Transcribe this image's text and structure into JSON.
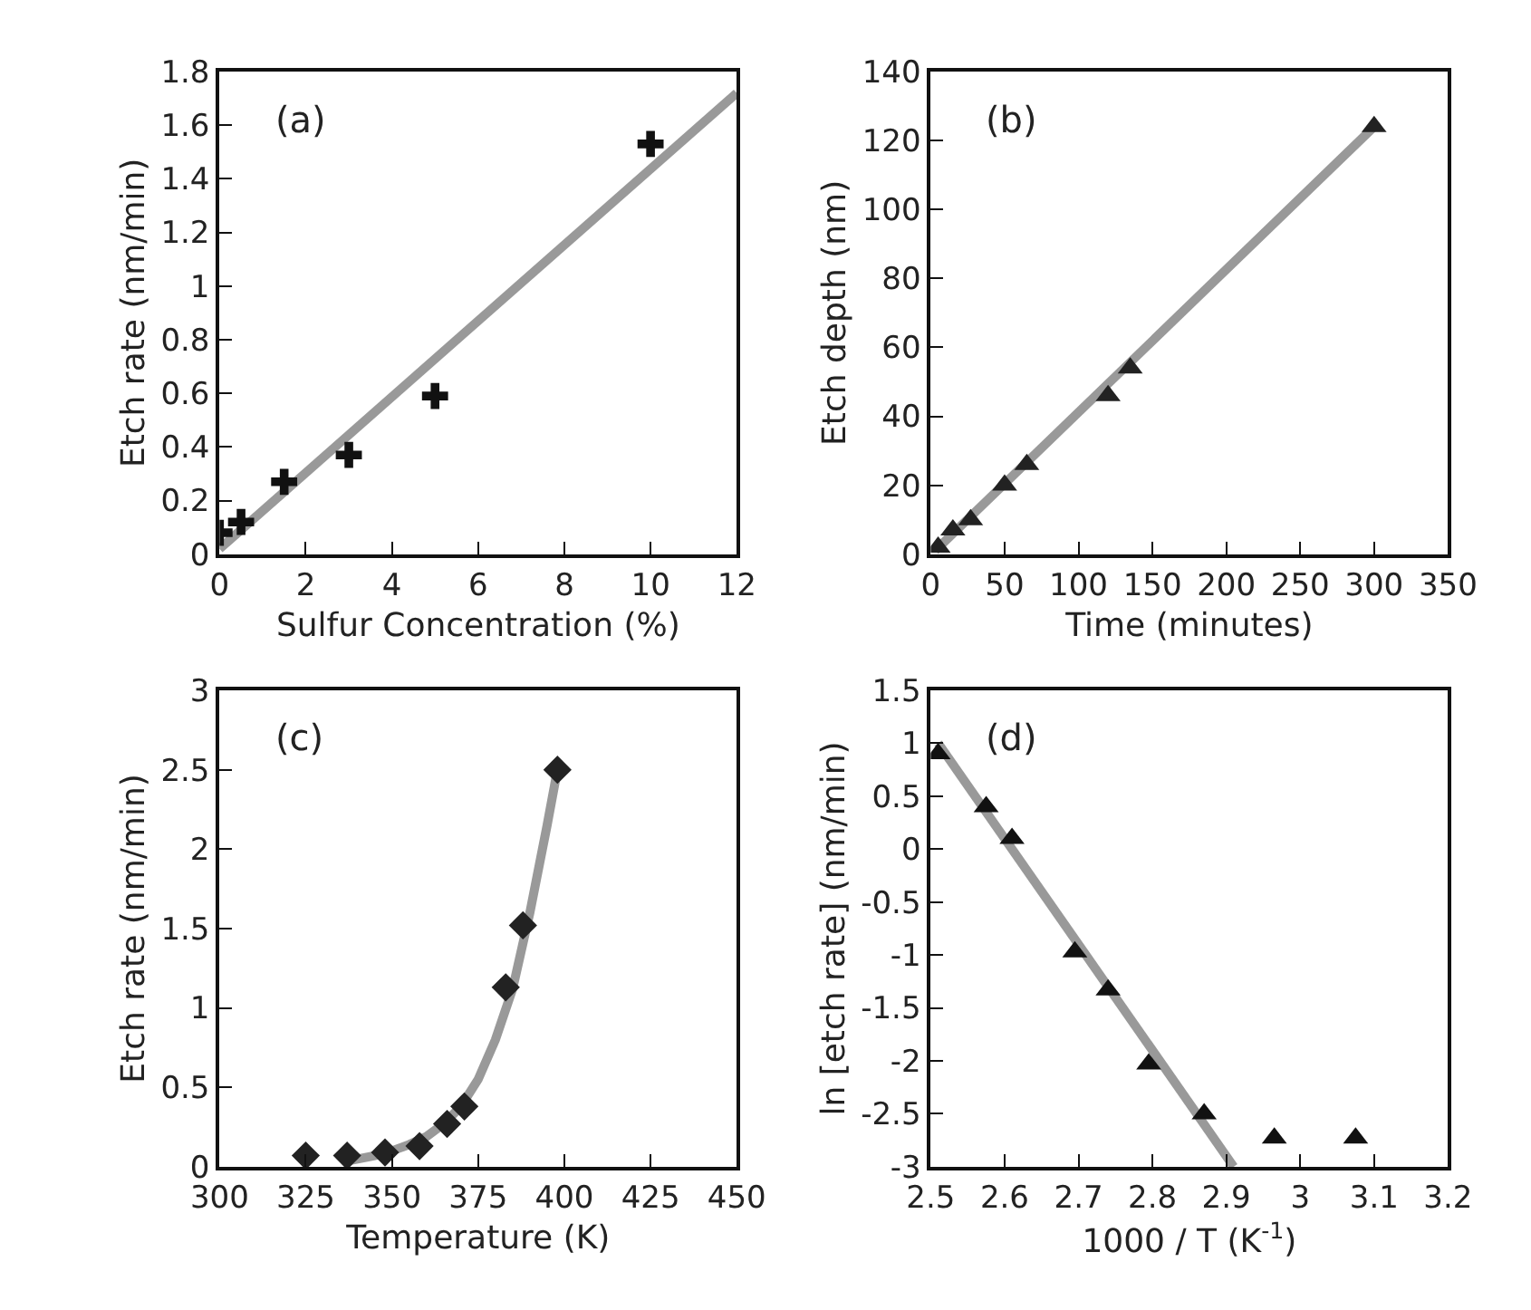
{
  "chart_data": [
    {
      "type": "scatter",
      "xlabel": "Sulfur Concentration (%)",
      "ylabel": "Etch rate (nm/min)",
      "annotations": [
        "(a)"
      ],
      "xlim": [
        0,
        12
      ],
      "xticks": [
        0,
        2,
        4,
        6,
        8,
        10,
        12
      ],
      "ylim": [
        0,
        1.8
      ],
      "yticks": [
        0,
        0.2,
        0.4,
        0.6,
        0.8,
        1,
        1.2,
        1.4,
        1.6,
        1.8
      ],
      "series": [
        {
          "marker": "cross",
          "color": "#111111",
          "x": [
            0,
            0.5,
            1.5,
            3,
            5,
            10
          ],
          "values": [
            0.08,
            0.12,
            0.27,
            0.37,
            0.59,
            1.53
          ]
        },
        {
          "type": "line",
          "marker": "none",
          "color": "#999999",
          "x": [
            0,
            12
          ],
          "values": [
            0.02,
            1.72
          ]
        }
      ]
    },
    {
      "type": "scatter",
      "xlabel": "Time (minutes)",
      "ylabel": "Etch depth (nm)",
      "annotations": [
        "(b)"
      ],
      "xlim": [
        0,
        350
      ],
      "xticks": [
        0,
        50,
        100,
        150,
        200,
        250,
        300,
        350
      ],
      "ylim": [
        0,
        140
      ],
      "yticks": [
        0,
        20,
        40,
        60,
        80,
        100,
        120,
        140
      ],
      "series": [
        {
          "marker": "triangle",
          "color": "#222222",
          "x": [
            5,
            15,
            27,
            50,
            65,
            120,
            135,
            300
          ],
          "values": [
            2,
            7,
            10,
            20,
            26,
            46,
            54,
            124
          ]
        },
        {
          "type": "line",
          "marker": "none",
          "color": "#999999",
          "x": [
            3,
            300
          ],
          "values": [
            1,
            124
          ]
        }
      ]
    },
    {
      "type": "scatter",
      "xlabel": "Temperature (K)",
      "ylabel": "Etch rate (nm/min)",
      "annotations": [
        "(c)"
      ],
      "xlim": [
        300,
        450
      ],
      "xticks": [
        300,
        325,
        350,
        375,
        400,
        425,
        450
      ],
      "ylim": [
        0,
        3
      ],
      "yticks": [
        0,
        0.5,
        1,
        1.5,
        2,
        2.5,
        3
      ],
      "series": [
        {
          "marker": "diamond",
          "color": "#222222",
          "x": [
            325,
            337,
            348,
            358,
            366,
            371,
            383,
            388,
            398
          ],
          "values": [
            0.07,
            0.07,
            0.09,
            0.13,
            0.27,
            0.38,
            1.13,
            1.52,
            2.5
          ]
        },
        {
          "type": "line",
          "marker": "none",
          "color": "#999999",
          "x": [
            338,
            345,
            350,
            355,
            360,
            365,
            370,
            375,
            380,
            385,
            390,
            395,
            398
          ],
          "values": [
            0.04,
            0.07,
            0.1,
            0.14,
            0.19,
            0.27,
            0.38,
            0.55,
            0.8,
            1.12,
            1.6,
            2.15,
            2.5
          ]
        }
      ]
    },
    {
      "type": "scatter",
      "xlabel": "1000 / T (K$^{-1}$)",
      "ylabel": "ln [etch rate] (nm/min)",
      "annotations": [
        "(d)"
      ],
      "xlim": [
        2.5,
        3.2
      ],
      "xticks": [
        2.5,
        2.6,
        2.7,
        2.8,
        2.9,
        3,
        3.1,
        3.2
      ],
      "ylim": [
        -3,
        1.5
      ],
      "yticks": [
        -3,
        -2.5,
        -2,
        -1.5,
        -1,
        -0.5,
        0,
        0.5,
        1,
        1.5
      ],
      "series": [
        {
          "marker": "triangle",
          "color": "#111111",
          "x": [
            2.51,
            2.575,
            2.61,
            2.695,
            2.74,
            2.795,
            2.87,
            2.965,
            3.075
          ],
          "values": [
            0.9,
            0.4,
            0.1,
            -0.97,
            -1.33,
            -2.03,
            -2.5,
            -2.73,
            -2.73
          ]
        },
        {
          "type": "line",
          "marker": "none",
          "color": "#999999",
          "x": [
            2.51,
            2.91
          ],
          "values": [
            1.0,
            -3
          ]
        }
      ]
    }
  ]
}
